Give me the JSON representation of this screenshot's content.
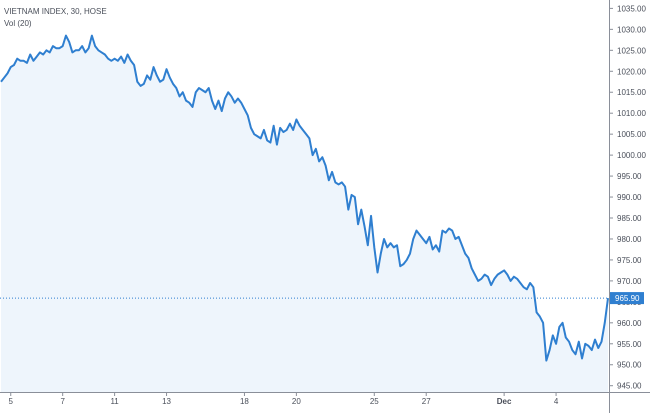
{
  "legend": {
    "symbol": "VIETNAM INDEX, 30, HOSE",
    "volume": "Vol (20)"
  },
  "colors": {
    "line": "#2f7fd0",
    "area": "#eef5fc",
    "axis": "#8a8f99",
    "last_price_bg": "#2f7fd0",
    "last_price_line": "#2f7fd0"
  },
  "chart_data": {
    "type": "area",
    "title": "",
    "xlabel": "",
    "ylabel": "",
    "ylim": [
      943.5,
      1037
    ],
    "y_ticks": [
      945,
      950,
      955,
      960,
      965,
      970,
      975,
      980,
      985,
      990,
      995,
      1000,
      1005,
      1010,
      1015,
      1020,
      1025,
      1030,
      1035
    ],
    "y_tick_labels": [
      "945.00",
      "950.00",
      "955.00",
      "960.00",
      "965.00",
      "970.00",
      "975.00",
      "980.00",
      "985.00",
      "990.00",
      "995.00",
      "1000.00",
      "1005.00",
      "1010.00",
      "1015.00",
      "1020.00",
      "1025.00",
      "1030.00",
      "1035.00"
    ],
    "x_ticks": [
      {
        "label": "5",
        "index": 3,
        "bold": false
      },
      {
        "label": "7",
        "index": 19,
        "bold": false
      },
      {
        "label": "11",
        "index": 35,
        "bold": false
      },
      {
        "label": "13",
        "index": 51,
        "bold": false
      },
      {
        "label": "18",
        "index": 75,
        "bold": false
      },
      {
        "label": "20",
        "index": 91,
        "bold": false
      },
      {
        "label": "25",
        "index": 115,
        "bold": false
      },
      {
        "label": "27",
        "index": 131,
        "bold": false
      },
      {
        "label": "Dec",
        "index": 155,
        "bold": true
      },
      {
        "label": "4",
        "index": 171,
        "bold": false
      }
    ],
    "last_price": 965.9,
    "last_price_label": "965.90",
    "series": [
      {
        "values": [
          1017.5,
          1018.5,
          1019.5,
          1021.0,
          1021.5,
          1023.0,
          1022.5,
          1022.5,
          1022.0,
          1024.0,
          1022.5,
          1023.5,
          1024.5,
          1024.0,
          1025.0,
          1024.5,
          1026.0,
          1025.5,
          1025.5,
          1026.0,
          1028.5,
          1027.0,
          1024.5,
          1025.0,
          1025.0,
          1026.0,
          1024.5,
          1025.5,
          1028.5,
          1026.0,
          1025.0,
          1024.5,
          1024.0,
          1023.0,
          1022.5,
          1023.0,
          1022.5,
          1023.5,
          1022.0,
          1024.0,
          1022.5,
          1021.5,
          1017.5,
          1016.5,
          1017.0,
          1019.0,
          1018.0,
          1021.0,
          1019.0,
          1017.5,
          1018.0,
          1020.5,
          1018.5,
          1017.0,
          1016.0,
          1014.0,
          1015.0,
          1013.0,
          1012.5,
          1011.5,
          1015.0,
          1016.0,
          1015.5,
          1015.0,
          1016.0,
          1013.0,
          1011.0,
          1013.0,
          1010.5,
          1013.5,
          1015.0,
          1014.0,
          1012.5,
          1013.5,
          1012.5,
          1011.0,
          1009.5,
          1006.5,
          1005.0,
          1004.5,
          1004.0,
          1006.0,
          1003.5,
          1003.0,
          1007.0,
          1002.5,
          1006.5,
          1005.5,
          1006.0,
          1007.5,
          1006.0,
          1008.5,
          1007.0,
          1006.0,
          1005.0,
          1004.0,
          1000.0,
          1001.5,
          998.5,
          999.5,
          997.5,
          994.0,
          996.0,
          993.5,
          993.0,
          993.5,
          992.5,
          987.0,
          990.5,
          990.0,
          983.5,
          987.0,
          983.0,
          978.5,
          985.5,
          978.0,
          972.0,
          976.5,
          980.0,
          978.0,
          979.0,
          978.0,
          978.5,
          973.5,
          974.0,
          975.0,
          976.5,
          980.0,
          982.0,
          981.0,
          980.0,
          979.0,
          980.5,
          977.5,
          978.5,
          977.0,
          982.0,
          981.5,
          982.5,
          982.0,
          980.0,
          980.5,
          978.5,
          976.5,
          975.5,
          973.0,
          971.5,
          970.0,
          970.5,
          971.5,
          971.0,
          969.0,
          970.5,
          971.5,
          972.0,
          972.5,
          971.5,
          970.0,
          971.0,
          970.5,
          969.5,
          968.5,
          968.0,
          969.5,
          968.5,
          962.5,
          961.5,
          960.0,
          951.0,
          953.5,
          957.0,
          955.0,
          959.0,
          960.0,
          956.5,
          955.5,
          953.5,
          952.5,
          955.5,
          951.5,
          955.0,
          954.5,
          953.5,
          956.0,
          954.0,
          955.5,
          960.0,
          965.9
        ]
      }
    ]
  }
}
